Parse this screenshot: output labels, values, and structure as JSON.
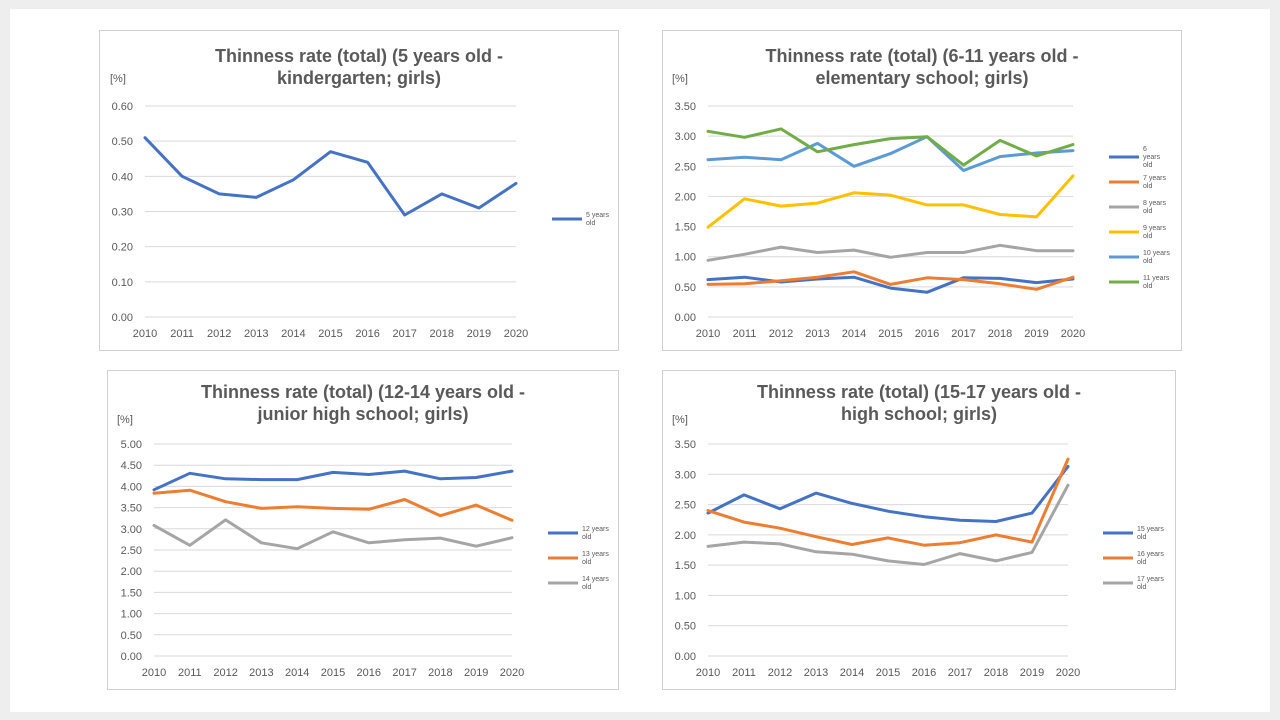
{
  "chart_data": [
    {
      "type": "line",
      "title_lines": [
        "Thinness rate (total) (5 years old -",
        "kindergarten; girls)"
      ],
      "ylabel": "[%]",
      "ylim": [
        0,
        0.6
      ],
      "yticks": [
        "0.00",
        "0.10",
        "0.20",
        "0.30",
        "0.40",
        "0.50",
        "0.60"
      ],
      "x": [
        "2010",
        "2011",
        "2012",
        "2013",
        "2014",
        "2015",
        "2016",
        "2017",
        "2018",
        "2019",
        "2020"
      ],
      "legend_position": "right",
      "grid": true,
      "series": [
        {
          "name_lines": [
            "5 years",
            "old"
          ],
          "color": "#4472c4",
          "values": [
            0.51,
            0.4,
            0.35,
            0.34,
            0.39,
            0.47,
            0.44,
            0.29,
            0.35,
            0.31,
            0.38
          ]
        }
      ]
    },
    {
      "type": "line",
      "title_lines": [
        "Thinness rate (total) (6-11 years old -",
        "elementary school; girls)"
      ],
      "ylabel": "[%]",
      "ylim": [
        0,
        3.5
      ],
      "yticks": [
        "0.00",
        "0.50",
        "1.00",
        "1.50",
        "2.00",
        "2.50",
        "3.00",
        "3.50"
      ],
      "x": [
        "2010",
        "2011",
        "2012",
        "2013",
        "2014",
        "2015",
        "2016",
        "2017",
        "2018",
        "2019",
        "2020"
      ],
      "legend_position": "right",
      "grid": true,
      "series": [
        {
          "name_lines": [
            "6",
            "years",
            "old"
          ],
          "color": "#4472c4",
          "values": [
            0.62,
            0.66,
            0.58,
            0.63,
            0.66,
            0.48,
            0.41,
            0.65,
            0.64,
            0.57,
            0.63
          ]
        },
        {
          "name_lines": [
            "7 years",
            "old"
          ],
          "color": "#ed7d31",
          "values": [
            0.54,
            0.55,
            0.6,
            0.66,
            0.75,
            0.54,
            0.65,
            0.62,
            0.55,
            0.46,
            0.66
          ]
        },
        {
          "name_lines": [
            "8 years",
            "old"
          ],
          "color": "#a5a5a5",
          "values": [
            0.94,
            1.04,
            1.16,
            1.07,
            1.11,
            0.99,
            1.07,
            1.07,
            1.19,
            1.1,
            1.1
          ]
        },
        {
          "name_lines": [
            "9 years",
            "old"
          ],
          "color": "#ffc000",
          "values": [
            1.49,
            1.96,
            1.84,
            1.89,
            2.06,
            2.02,
            1.86,
            1.86,
            1.7,
            1.66,
            2.34
          ]
        },
        {
          "name_lines": [
            "10 years",
            "old"
          ],
          "color": "#5b9bd5",
          "values": [
            2.61,
            2.65,
            2.61,
            2.88,
            2.5,
            2.71,
            2.99,
            2.43,
            2.66,
            2.72,
            2.76
          ]
        },
        {
          "name_lines": [
            "11 years",
            "old"
          ],
          "color": "#70ad47",
          "values": [
            3.08,
            2.98,
            3.12,
            2.74,
            2.86,
            2.96,
            2.99,
            2.52,
            2.93,
            2.67,
            2.86
          ]
        }
      ]
    },
    {
      "type": "line",
      "title_lines": [
        "Thinness rate (total) (12-14 years old -",
        "junior high school; girls)"
      ],
      "ylabel": "[%]",
      "ylim": [
        0,
        5
      ],
      "yticks": [
        "0.00",
        "0.50",
        "1.00",
        "1.50",
        "2.00",
        "2.50",
        "3.00",
        "3.50",
        "4.00",
        "4.50",
        "5.00"
      ],
      "x": [
        "2010",
        "2011",
        "2012",
        "2013",
        "2014",
        "2015",
        "2016",
        "2017",
        "2018",
        "2019",
        "2020"
      ],
      "legend_position": "right",
      "grid": true,
      "series": [
        {
          "name_lines": [
            "12 years",
            "old"
          ],
          "color": "#4472c4",
          "values": [
            3.92,
            4.31,
            4.18,
            4.16,
            4.16,
            4.33,
            4.28,
            4.36,
            4.18,
            4.21,
            4.36
          ]
        },
        {
          "name_lines": [
            "13 years",
            "old"
          ],
          "color": "#ed7d31",
          "values": [
            3.84,
            3.91,
            3.64,
            3.48,
            3.52,
            3.48,
            3.46,
            3.69,
            3.31,
            3.56,
            3.2
          ]
        },
        {
          "name_lines": [
            "14 years",
            "old"
          ],
          "color": "#a5a5a5",
          "values": [
            3.08,
            2.61,
            3.21,
            2.67,
            2.53,
            2.93,
            2.67,
            2.74,
            2.78,
            2.59,
            2.79
          ]
        }
      ]
    },
    {
      "type": "line",
      "title_lines": [
        "Thinness rate (total) (15-17 years old -",
        "high school; girls)"
      ],
      "ylabel": "[%]",
      "ylim": [
        0,
        3.5
      ],
      "yticks": [
        "0.00",
        "0.50",
        "1.00",
        "1.50",
        "2.00",
        "2.50",
        "3.00",
        "3.50"
      ],
      "x": [
        "2010",
        "2011",
        "2012",
        "2013",
        "2014",
        "2015",
        "2016",
        "2017",
        "2018",
        "2019",
        "2020"
      ],
      "legend_position": "right",
      "grid": true,
      "series": [
        {
          "name_lines": [
            "15 years",
            "old"
          ],
          "color": "#4472c4",
          "values": [
            2.36,
            2.66,
            2.43,
            2.69,
            2.52,
            2.39,
            2.3,
            2.24,
            2.22,
            2.36,
            3.13
          ]
        },
        {
          "name_lines": [
            "16 years",
            "old"
          ],
          "color": "#ed7d31",
          "values": [
            2.4,
            2.21,
            2.11,
            1.97,
            1.84,
            1.95,
            1.83,
            1.87,
            2.0,
            1.88,
            3.25
          ]
        },
        {
          "name_lines": [
            "17 years",
            "old"
          ],
          "color": "#a5a5a5",
          "values": [
            1.81,
            1.88,
            1.85,
            1.72,
            1.68,
            1.57,
            1.51,
            1.69,
            1.57,
            1.71,
            2.82
          ]
        }
      ]
    }
  ]
}
